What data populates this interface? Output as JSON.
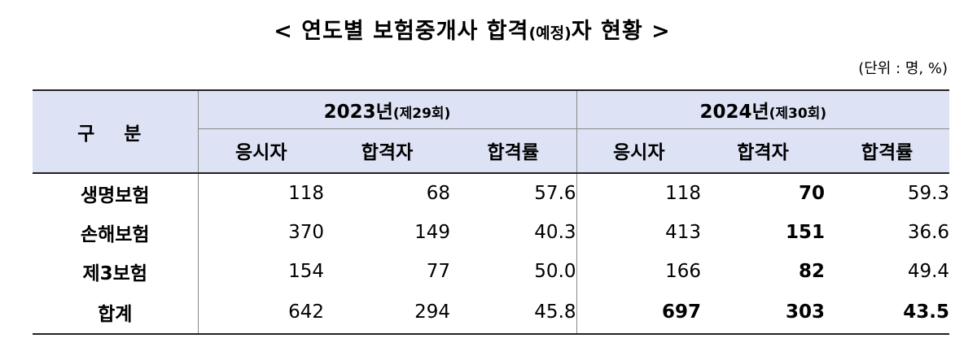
{
  "title": {
    "main_before": "< 연도별 보험중개사 합격",
    "paren": "(예정)",
    "main_after": "자 현황 >"
  },
  "unit": "(단위 : 명, %)",
  "table": {
    "category_header": "구 분",
    "years": [
      {
        "year": "2023년",
        "round": "(제29회)"
      },
      {
        "year": "2024년",
        "round": "(제30회)"
      }
    ],
    "sub_headers": [
      "응시자",
      "합격자",
      "합격률",
      "응시자",
      "합격자",
      "합격률"
    ],
    "rows": [
      {
        "label": "생명보험",
        "cells": [
          "118",
          "68",
          "57.6",
          "118",
          "70",
          "59.3"
        ]
      },
      {
        "label": "손해보험",
        "cells": [
          "370",
          "149",
          "40.3",
          "413",
          "151",
          "36.6"
        ]
      },
      {
        "label": "제3보험",
        "cells": [
          "154",
          "77",
          "50.0",
          "166",
          "82",
          "49.4"
        ]
      },
      {
        "label": "합계",
        "cells": [
          "642",
          "294",
          "45.8",
          "697",
          "303",
          "43.5"
        ]
      }
    ],
    "bold_column_note": "2024 합격자 column and 2024 합계 values rendered bold"
  }
}
